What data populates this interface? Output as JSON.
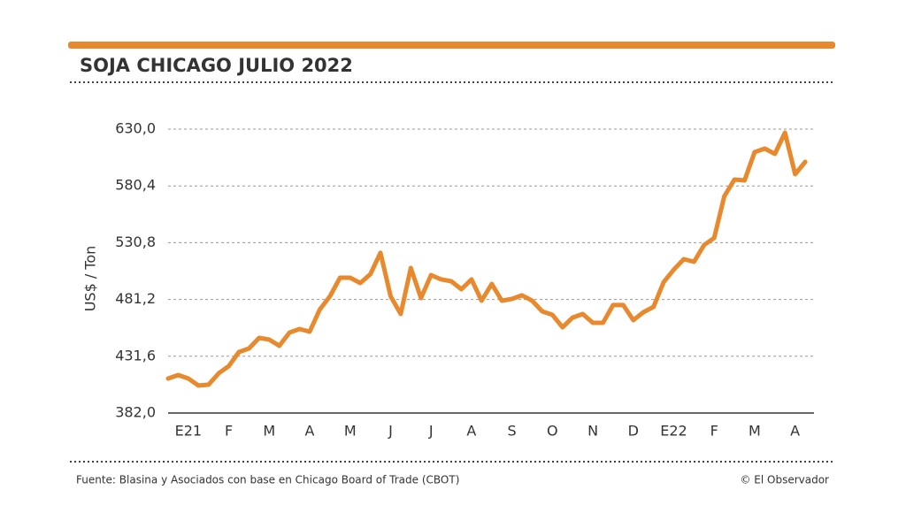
{
  "chart_data": {
    "type": "line",
    "title": "SOJA CHICAGO JULIO 2022",
    "y_label": "US$ / Ton",
    "source": "Fuente: Blasina y Asociados con base en Chicago Board of Trade (CBOT)",
    "credit": "© El Observador",
    "categories": [
      null,
      null,
      "E21",
      null,
      null,
      null,
      "F",
      null,
      null,
      null,
      "M",
      null,
      null,
      null,
      "A",
      null,
      null,
      null,
      "M",
      null,
      null,
      null,
      "J",
      null,
      null,
      null,
      "J",
      null,
      null,
      null,
      "A",
      null,
      null,
      null,
      "S",
      null,
      null,
      null,
      "O",
      null,
      null,
      null,
      "N",
      null,
      null,
      null,
      "D",
      null,
      null,
      null,
      "E22",
      null,
      null,
      null,
      "F",
      null,
      null,
      null,
      "M",
      null,
      null,
      null,
      "A",
      null
    ],
    "series": [
      {
        "name": "Soja Chicago julio 2022",
        "color": "#e8892e",
        "values": [
          412.1,
          415.2,
          412.1,
          406.0,
          406.7,
          416.8,
          423.0,
          435.3,
          438.4,
          447.7,
          446.1,
          440.7,
          452.3,
          455.4,
          453.1,
          472.4,
          484.0,
          500.2,
          500.2,
          495.6,
          503.3,
          522.0,
          484.0,
          468.5,
          508.7,
          482.4,
          502.5,
          498.7,
          497.1,
          490.2,
          498.7,
          480.1,
          494.8,
          480.1,
          481.7,
          484.8,
          480.1,
          470.8,
          467.8,
          456.9,
          465.4,
          468.5,
          460.8,
          460.8,
          476.3,
          476.3,
          463.1,
          470.1,
          474.7,
          496.4,
          507.2,
          516.4,
          514.1,
          528.8,
          535.0,
          571.3,
          586.0,
          585.2,
          609.9,
          613.0,
          608.4,
          626.9,
          590.6,
          601.4
        ]
      }
    ],
    "ylim": [
      382.0,
      630.0
    ],
    "yticks": [
      {
        "value": 382.0,
        "label": "382,0"
      },
      {
        "value": 431.6,
        "label": "431,6"
      },
      {
        "value": 481.2,
        "label": "481,2"
      },
      {
        "value": 530.8,
        "label": "530,8"
      },
      {
        "value": 580.4,
        "label": "580,4"
      },
      {
        "value": 630.0,
        "label": "630,0"
      }
    ],
    "grid": true
  }
}
